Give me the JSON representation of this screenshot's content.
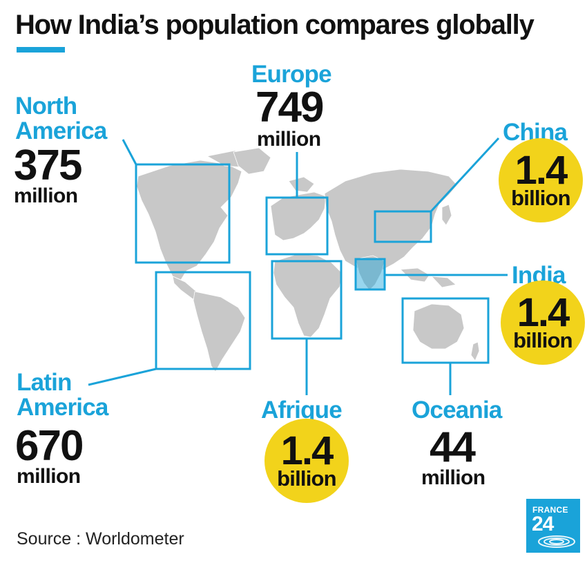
{
  "title": "How India’s population compares globally",
  "regions": {
    "north_america": {
      "name_line1": "North",
      "name_line2": "America",
      "value": "375",
      "unit": "million"
    },
    "europe": {
      "name": "Europe",
      "value": "749",
      "unit": "million"
    },
    "china": {
      "name": "China",
      "value": "1.4",
      "unit": "billion"
    },
    "india": {
      "name": "India",
      "value": "1.4",
      "unit": "billion"
    },
    "latin_america": {
      "name_line1": "Latin",
      "name_line2": "America",
      "value": "670",
      "unit": "million"
    },
    "africa": {
      "name": "Afrique",
      "value": "1.4",
      "unit": "billion"
    },
    "oceania": {
      "name": "Oceania",
      "value": "44",
      "unit": "million"
    }
  },
  "source": "Source : Worldometer",
  "logo": {
    "line1": "FRANCE",
    "line2": "24"
  },
  "colors": {
    "accent": "#1aa3d9",
    "highlight": "#f2d31b",
    "map_land": "#c8c8c8",
    "text": "#111111"
  },
  "icons": {
    "map": "world-map-icon",
    "logo": "france24-logo-icon"
  }
}
